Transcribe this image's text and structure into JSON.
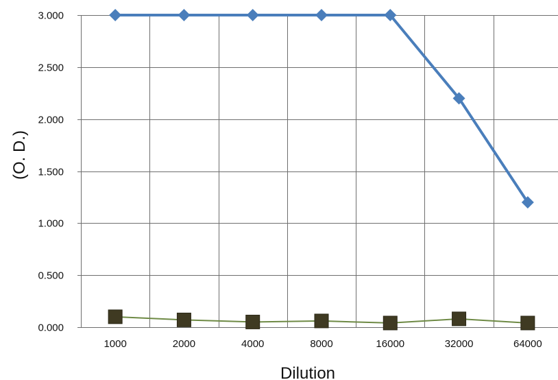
{
  "chart_data": {
    "type": "line",
    "title": "",
    "xlabel": "Dilution",
    "ylabel": "(O. D.)",
    "categories": [
      "1000",
      "2000",
      "4000",
      "8000",
      "16000",
      "32000",
      "64000"
    ],
    "yticks": [
      "0.000",
      "0.500",
      "1.000",
      "1.500",
      "2.000",
      "2.500",
      "3.000"
    ],
    "ylim": [
      0,
      3
    ],
    "grid": true,
    "legend": "none",
    "series": [
      {
        "values": [
          3.0,
          3.0,
          3.0,
          3.0,
          3.0,
          2.2,
          1.2
        ],
        "color": "#4a7ebb",
        "marker": "diamond"
      },
      {
        "values": [
          0.1,
          0.07,
          0.05,
          0.06,
          0.04,
          0.08,
          0.04
        ],
        "color": "#6e8a45",
        "marker_color": "#3f3a22",
        "marker": "square"
      }
    ]
  }
}
